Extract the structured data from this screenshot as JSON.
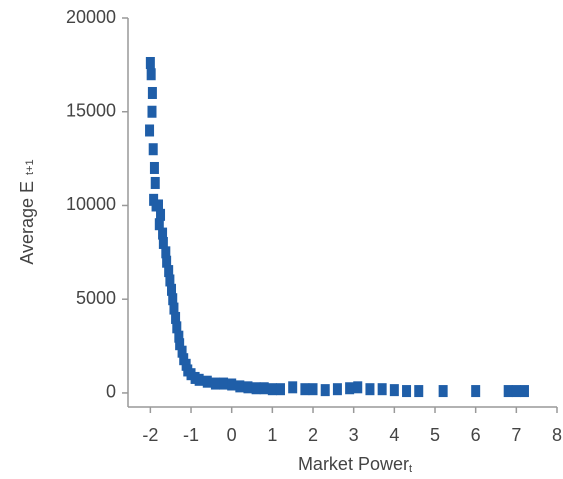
{
  "chart_data": {
    "type": "scatter",
    "x_label": "Market Power",
    "x_label_sub": "t",
    "y_label": "Average E",
    "y_label_sub": "t+1",
    "xlim": [
      -2.55,
      8
    ],
    "xticks": [
      -2,
      -1,
      0,
      1,
      2,
      3,
      4,
      5,
      6,
      7,
      8
    ],
    "ylim": [
      -750,
      20000
    ],
    "yticks": [
      0,
      5000,
      10000,
      15000,
      20000
    ],
    "grid": false,
    "series": [
      {
        "color": "#1f5ea8",
        "x": [
          -2.0,
          -1.98,
          -1.95,
          -2.02,
          -1.96,
          -1.93,
          -1.9,
          -1.88,
          -1.92,
          -1.86,
          -1.8,
          -1.75,
          -1.78,
          -1.7,
          -1.68,
          -1.62,
          -1.6,
          -1.55,
          -1.52,
          -1.48,
          -1.45,
          -1.42,
          -1.38,
          -1.35,
          -1.3,
          -1.28,
          -1.22,
          -1.18,
          -1.12,
          -1.08,
          -1.0,
          -0.9,
          -0.8,
          -0.6,
          -0.4,
          -0.2,
          0.0,
          0.2,
          0.4,
          0.6,
          0.8,
          1.0,
          1.2,
          1.5,
          1.8,
          2.0,
          2.3,
          2.6,
          2.9,
          3.1,
          3.4,
          3.7,
          4.0,
          4.3,
          4.6,
          5.2,
          6.0,
          6.8,
          7.0,
          7.2
        ],
        "y": [
          17600,
          17000,
          16000,
          14000,
          15000,
          13000,
          12000,
          11200,
          10300,
          10000,
          10000,
          9500,
          9000,
          8500,
          8000,
          7500,
          7000,
          6500,
          6000,
          5500,
          5000,
          4500,
          4000,
          3500,
          3000,
          2600,
          2200,
          1800,
          1500,
          1200,
          1000,
          800,
          700,
          600,
          500,
          500,
          450,
          350,
          300,
          250,
          250,
          200,
          200,
          300,
          200,
          200,
          150,
          200,
          250,
          300,
          200,
          200,
          150,
          100,
          100,
          100,
          100,
          100,
          100,
          100
        ]
      }
    ]
  }
}
